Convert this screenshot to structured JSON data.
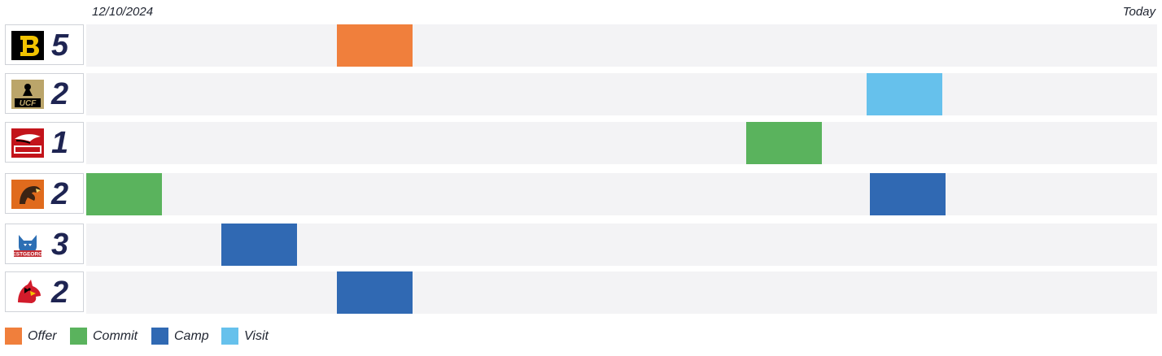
{
  "chart_data": {
    "type": "timeline",
    "start_label": "12/10/2024",
    "end_label": "Today",
    "rows": [
      {
        "team_icon": "b-block-logo",
        "count": "5",
        "events": [
          {
            "type": "Offer",
            "position": 0.234
          }
        ]
      },
      {
        "team_icon": "ucf-knight-logo",
        "count": "2",
        "events": [
          {
            "type": "Visit",
            "position": 0.729
          }
        ]
      },
      {
        "team_icon": "hawk-wordmark-logo",
        "count": "1",
        "events": [
          {
            "type": "Commit",
            "position": 0.616
          }
        ]
      },
      {
        "team_icon": "falcon-head-logo",
        "count": "2",
        "events": [
          {
            "type": "Commit",
            "position": 0.0
          },
          {
            "type": "Camp",
            "position": 0.732
          }
        ]
      },
      {
        "team_icon": "wolf-west-georgia-logo",
        "count": "3",
        "events": [
          {
            "type": "Camp",
            "position": 0.126
          }
        ]
      },
      {
        "team_icon": "cardinal-logo",
        "count": "2",
        "events": [
          {
            "type": "Camp",
            "position": 0.234
          }
        ]
      }
    ],
    "legend": [
      {
        "label": "Offer",
        "color": "#f07f3c"
      },
      {
        "label": "Commit",
        "color": "#5ab35d"
      },
      {
        "label": "Camp",
        "color": "#3069b3"
      },
      {
        "label": "Visit",
        "color": "#66c1ec"
      }
    ]
  }
}
